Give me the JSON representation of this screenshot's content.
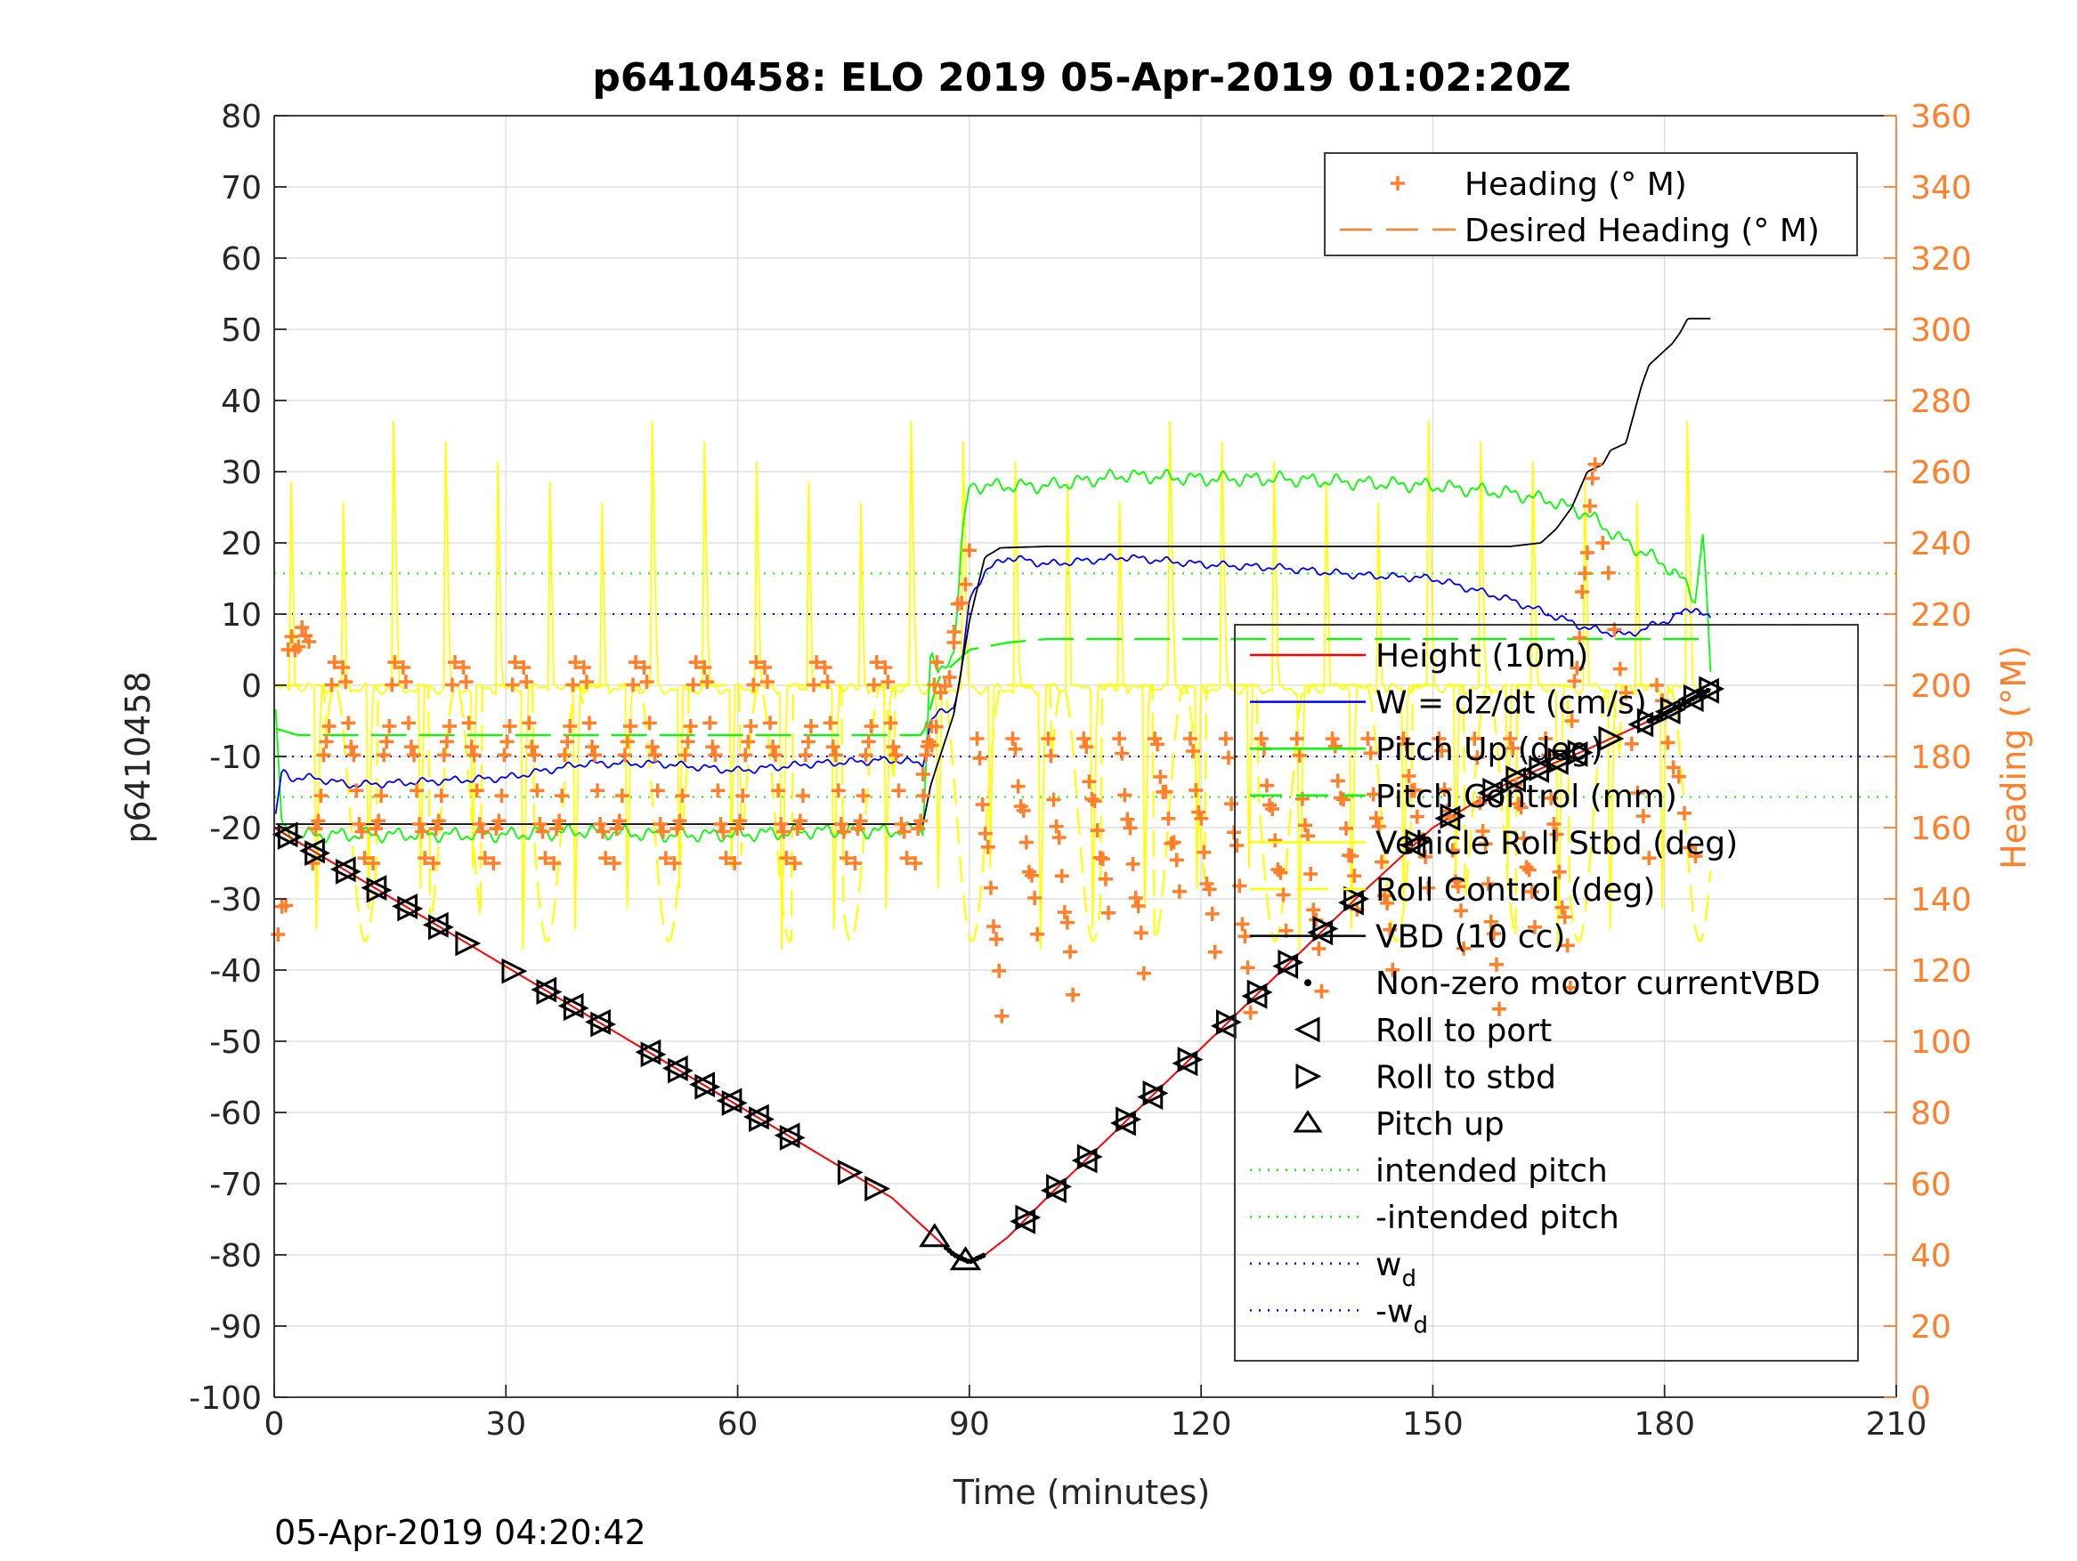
{
  "chart_data": {
    "type": "line",
    "title": "p6410458: ELO 2019 05-Apr-2019 01:02:20Z",
    "xlabel": "Time (minutes)",
    "ylabel": "p6410458",
    "y2label": "Heading (°M)",
    "footer": "05-Apr-2019 04:20:42",
    "xlim": [
      0,
      210
    ],
    "ylim": [
      -100,
      80
    ],
    "y2lim": [
      0,
      360
    ],
    "xticks": [
      0,
      30,
      60,
      90,
      120,
      150,
      180,
      210
    ],
    "yticks": [
      -100,
      -90,
      -80,
      -70,
      -60,
      -50,
      -40,
      -30,
      -20,
      -10,
      0,
      10,
      20,
      30,
      40,
      50,
      60,
      70,
      80
    ],
    "y2ticks": [
      0,
      20,
      40,
      60,
      80,
      100,
      120,
      140,
      160,
      180,
      200,
      220,
      240,
      260,
      280,
      300,
      320,
      340,
      360
    ],
    "grid": true,
    "colors": {
      "height": "#ff0000",
      "w": "#0000ff",
      "pitch": "#00ff00",
      "roll": "#ffff00",
      "vbd": "#000000",
      "heading": "#ff7f2a",
      "axis2": "#ff7f2a"
    },
    "legend_right": {
      "placement": "top-right",
      "entries": [
        {
          "label": "Heading (° M)",
          "style": "plus",
          "color": "#ff7f2a"
        },
        {
          "label": "Desired Heading (° M)",
          "style": "dash",
          "color": "#ff7f2a"
        }
      ]
    },
    "legend_left": {
      "placement": "right",
      "entries": [
        {
          "label": "Height (10m)",
          "style": "line",
          "color": "#ff0000"
        },
        {
          "label": "W = dz/dt (cm/s)",
          "style": "line",
          "color": "#0000ff"
        },
        {
          "label": "Pitch Up (deg)",
          "style": "line",
          "color": "#00ff00"
        },
        {
          "label": "Pitch Control (mm)",
          "style": "dash",
          "color": "#00ff00"
        },
        {
          "label": "Vehicle Roll Stbd (deg)",
          "style": "line",
          "color": "#ffff00"
        },
        {
          "label": "Roll Control (deg)",
          "style": "dash",
          "color": "#ffff00"
        },
        {
          "label": "VBD (10 cc)",
          "style": "line",
          "color": "#000000"
        },
        {
          "label": "Non-zero motor currentVBD",
          "style": "dot",
          "color": "#000000"
        },
        {
          "label": "Roll to port",
          "style": "tri-left",
          "color": "#000000"
        },
        {
          "label": "Roll to stbd",
          "style": "tri-right",
          "color": "#000000"
        },
        {
          "label": "Pitch up",
          "style": "tri-up",
          "color": "#000000"
        },
        {
          "label": "intended pitch",
          "style": "dotted",
          "color": "#00ff00"
        },
        {
          "label": "-intended pitch",
          "style": "dotted",
          "color": "#00ff00"
        },
        {
          "label": "w",
          "sub": "d",
          "style": "dotted",
          "color": "#0000ff"
        },
        {
          "label": "-w",
          "sub": "d",
          "style": "dotted",
          "color": "#0000ff"
        }
      ]
    },
    "series": {
      "height": {
        "x": [
          0,
          10,
          20,
          30,
          40,
          50,
          60,
          70,
          80,
          85,
          88,
          90,
          92,
          95,
          100,
          110,
          120,
          130,
          140,
          150,
          160,
          170,
          180,
          186
        ],
        "y": [
          -20,
          -26.5,
          -33,
          -39.5,
          -46,
          -52.5,
          -59,
          -65.5,
          -72,
          -77,
          -80,
          -81,
          -80,
          -77.5,
          -72,
          -61.5,
          -51,
          -40.5,
          -30,
          -20,
          -13.5,
          -9,
          -4,
          -0.5
        ]
      },
      "w": {
        "x": [
          0,
          1,
          2,
          5,
          10,
          20,
          30,
          40,
          50,
          60,
          70,
          80,
          84,
          85,
          86,
          88,
          89,
          90,
          92,
          95,
          100,
          110,
          120,
          130,
          140,
          150,
          160,
          165,
          170,
          175,
          180,
          184,
          186
        ],
        "y": [
          -20,
          -12,
          -13,
          -13,
          -14,
          -13.5,
          -13,
          -11,
          -11,
          -12,
          -11,
          -10.5,
          -11,
          -5,
          -4,
          -3,
          2,
          12,
          16,
          18,
          17,
          18,
          17,
          16.5,
          15.5,
          15,
          12,
          10,
          8,
          7,
          9,
          11,
          9
        ]
      },
      "pitch": {
        "x": [
          0,
          1,
          2,
          10,
          20,
          30,
          40,
          50,
          60,
          70,
          80,
          84,
          85,
          86,
          88,
          89,
          90,
          95,
          100,
          110,
          120,
          130,
          140,
          150,
          160,
          165,
          170,
          175,
          180,
          183,
          184,
          185,
          186
        ],
        "y": [
          0,
          -20,
          -21,
          -21,
          -21,
          -21,
          -20.5,
          -21,
          -21,
          -20.5,
          -20.5,
          -20,
          5,
          1,
          5,
          20,
          28,
          28,
          28,
          29.5,
          29,
          29,
          28.5,
          28,
          27,
          26,
          24,
          20,
          17,
          14,
          12,
          22,
          0
        ]
      },
      "pitch_control": {
        "x": [
          0,
          3,
          20,
          40,
          60,
          80,
          84,
          86,
          90,
          95,
          100,
          120,
          140,
          160,
          180,
          186
        ],
        "y": [
          -6,
          -7,
          -7,
          -7,
          -7,
          -7,
          -7,
          1,
          5,
          6,
          6.5,
          6.5,
          6.5,
          6.5,
          6.5,
          6.5
        ]
      },
      "vbd": {
        "x": [
          0,
          84,
          85,
          88,
          90,
          92,
          94,
          100,
          120,
          140,
          160,
          164,
          165,
          166,
          167,
          168,
          170,
          172,
          173,
          175,
          176,
          177,
          178,
          180,
          181,
          182,
          183,
          186
        ],
        "y": [
          -19.5,
          -19.5,
          -14,
          -4,
          9,
          18,
          19.3,
          19.5,
          19.5,
          19.5,
          19.5,
          20,
          21,
          22,
          23.5,
          25,
          30,
          31,
          33,
          34,
          38,
          42,
          45,
          47,
          48,
          49.5,
          51.5,
          51.5
        ]
      },
      "intended_pitch": {
        "value": 15.7
      },
      "neg_intended_pitch": {
        "value": -15.7
      },
      "wd": {
        "value": 10
      },
      "neg_wd": {
        "value": -10
      },
      "roll_to_port_x": [
        1.5,
        5,
        9,
        13,
        17,
        21,
        35,
        38.5,
        42,
        48.5,
        52,
        55.5,
        59,
        62.5,
        66.5,
        97,
        101,
        105,
        110,
        113.5,
        118,
        123,
        127,
        131,
        135.5,
        139.5,
        147.5,
        152,
        157.5,
        160.5,
        163.5,
        166,
        168.5,
        177,
        180.5,
        183.5,
        185.5
      ],
      "roll_to_stbd_x": [
        2,
        5.5,
        9.5,
        13.5,
        17.5,
        21.5,
        25,
        31,
        35.5,
        39,
        42.5,
        49,
        52.5,
        56,
        59.5,
        63,
        67,
        74.5,
        78,
        97.5,
        101.5,
        105.5,
        110.5,
        114,
        118.5,
        123.5,
        127.5,
        131.5,
        136,
        140,
        148,
        152.5,
        158,
        161,
        164,
        166.5,
        169,
        173,
        178,
        181,
        184,
        186
      ],
      "pitch_up_x": [
        85.5,
        89.5
      ]
    }
  }
}
